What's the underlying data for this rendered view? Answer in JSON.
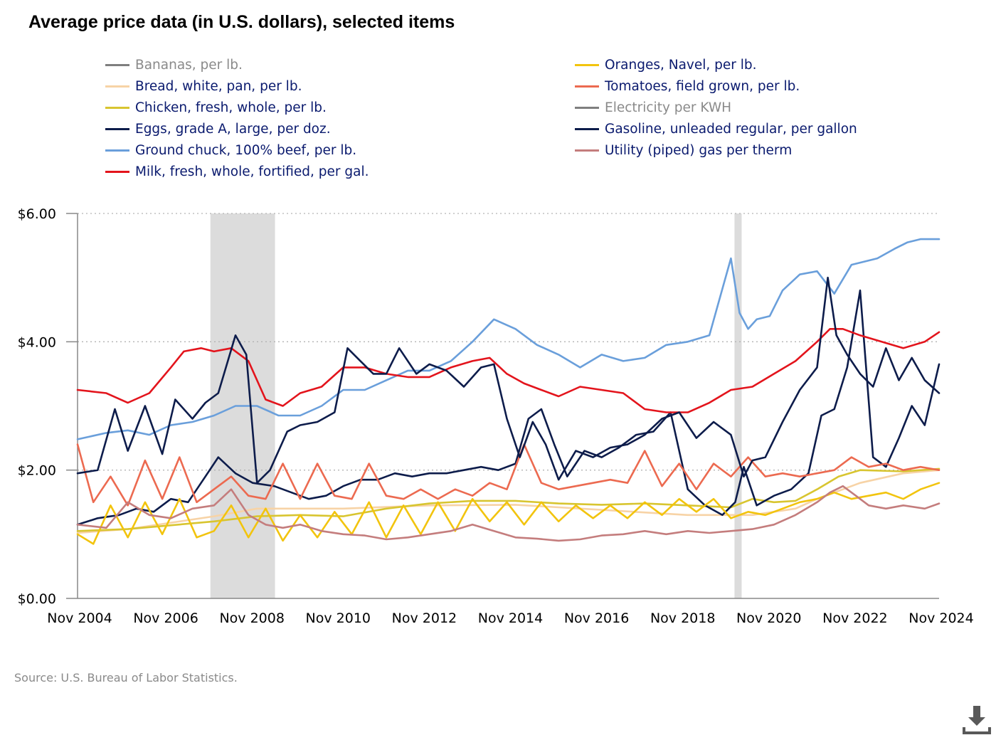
{
  "chart_data": {
    "type": "line",
    "title": "Average price data (in U.S. dollars), selected items",
    "source": "Source: U.S. Bureau of Labor Statistics.",
    "ylim": [
      0,
      6
    ],
    "yticks": [
      0,
      2,
      4,
      6
    ],
    "ytick_labels": [
      "$0.00",
      "$2.00",
      "$4.00",
      "$6.00"
    ],
    "xlim": [
      2004.833,
      2024.833
    ],
    "xticks": [
      2004.833,
      2006.833,
      2008.833,
      2010.833,
      2012.833,
      2014.833,
      2016.833,
      2018.833,
      2020.833,
      2022.833,
      2024.833
    ],
    "xtick_labels": [
      "Nov 2004",
      "Nov 2006",
      "Nov 2008",
      "Nov 2010",
      "Nov 2012",
      "Nov 2014",
      "Nov 2016",
      "Nov 2018",
      "Nov 2020",
      "Nov 2022",
      "Nov 2024"
    ],
    "grid": "horizontal dotted",
    "legend_placement": "top",
    "recessions": [
      [
        2007.917,
        2009.417
      ],
      [
        2020.083,
        2020.25
      ]
    ],
    "series": [
      {
        "name": "Bananas, per lb.",
        "color": "#7f7f7f",
        "hidden": true,
        "x": [],
        "y": []
      },
      {
        "name": "Bread, white, pan, per lb.",
        "color": "#f7d3a6",
        "x": [
          2004.833,
          2006,
          2008,
          2009,
          2011,
          2013,
          2015,
          2017,
          2019,
          2020.5,
          2021.5,
          2022,
          2023,
          2024,
          2024.833
        ],
        "y": [
          1.02,
          1.08,
          1.28,
          1.4,
          1.4,
          1.45,
          1.46,
          1.38,
          1.3,
          1.3,
          1.4,
          1.55,
          1.8,
          1.95,
          2.0
        ]
      },
      {
        "name": "Chicken, fresh, whole, per lb.",
        "color": "#d8c530",
        "x": [
          2004.833,
          2006,
          2008,
          2009,
          2010,
          2011,
          2012,
          2013,
          2014,
          2015,
          2016,
          2017,
          2018,
          2019,
          2020,
          2020.5,
          2021,
          2021.5,
          2022,
          2022.5,
          2023,
          2024,
          2024.833
        ],
        "y": [
          1.05,
          1.08,
          1.2,
          1.28,
          1.3,
          1.28,
          1.4,
          1.48,
          1.52,
          1.52,
          1.48,
          1.46,
          1.48,
          1.45,
          1.42,
          1.55,
          1.5,
          1.52,
          1.7,
          1.9,
          2.0,
          1.98,
          2.02
        ]
      },
      {
        "name": "Eggs, grade A, large, per doz.",
        "color": "#0d1c4b",
        "x": [
          2004.833,
          2005.3,
          2005.8,
          2006.2,
          2006.6,
          2007.0,
          2007.4,
          2007.8,
          2008.1,
          2008.5,
          2008.9,
          2009.4,
          2009.8,
          2010.2,
          2010.6,
          2011.0,
          2011.4,
          2011.8,
          2012.2,
          2012.6,
          2013.0,
          2013.4,
          2013.8,
          2014.2,
          2014.6,
          2015.0,
          2015.3,
          2015.6,
          2015.9,
          2016.2,
          2016.6,
          2017.0,
          2017.4,
          2017.8,
          2018.2,
          2018.6,
          2019.0,
          2019.4,
          2019.8,
          2020.1,
          2020.3,
          2020.6,
          2021.0,
          2021.4,
          2021.8,
          2022.1,
          2022.4,
          2022.7,
          2023.0,
          2023.3,
          2023.6,
          2023.9,
          2024.2,
          2024.5,
          2024.833
        ],
        "y": [
          1.15,
          1.25,
          1.3,
          1.4,
          1.35,
          1.55,
          1.5,
          1.9,
          2.2,
          1.95,
          1.8,
          1.75,
          1.65,
          1.55,
          1.6,
          1.75,
          1.85,
          1.85,
          1.95,
          1.9,
          1.95,
          1.95,
          2.0,
          2.05,
          2.0,
          2.1,
          2.8,
          2.95,
          2.4,
          1.9,
          2.3,
          2.2,
          2.35,
          2.55,
          2.6,
          2.9,
          1.7,
          1.45,
          1.3,
          1.5,
          2.05,
          1.45,
          1.6,
          1.7,
          1.95,
          2.85,
          2.95,
          3.6,
          4.8,
          2.2,
          2.05,
          2.5,
          3.0,
          2.7,
          3.65
        ]
      },
      {
        "name": "Ground chuck, 100% beef, per lb.",
        "color": "#6a9fdb",
        "x": [
          2004.833,
          2005.5,
          2006,
          2006.5,
          2007,
          2007.5,
          2008,
          2008.5,
          2009,
          2009.5,
          2010,
          2010.5,
          2011,
          2011.5,
          2012,
          2012.5,
          2013,
          2013.5,
          2014,
          2014.5,
          2015,
          2015.5,
          2016,
          2016.5,
          2017,
          2017.5,
          2018,
          2018.5,
          2019,
          2019.5,
          2020,
          2020.2,
          2020.4,
          2020.6,
          2020.9,
          2021.2,
          2021.6,
          2022,
          2022.4,
          2022.8,
          2023.1,
          2023.4,
          2023.8,
          2024.1,
          2024.4,
          2024.833
        ],
        "y": [
          2.48,
          2.58,
          2.62,
          2.55,
          2.7,
          2.75,
          2.85,
          3.0,
          3.0,
          2.85,
          2.85,
          3.0,
          3.25,
          3.25,
          3.4,
          3.55,
          3.55,
          3.7,
          4.0,
          4.35,
          4.2,
          3.95,
          3.8,
          3.6,
          3.8,
          3.7,
          3.75,
          3.95,
          4.0,
          4.1,
          5.3,
          4.45,
          4.2,
          4.35,
          4.4,
          4.8,
          5.05,
          5.1,
          4.75,
          5.2,
          5.25,
          5.3,
          5.45,
          5.55,
          5.6,
          5.6
        ]
      },
      {
        "name": "Milk, fresh, whole, fortified, per gal.",
        "color": "#e3141c",
        "x": [
          2004.833,
          2005.5,
          2006,
          2006.5,
          2007,
          2007.3,
          2007.7,
          2008,
          2008.4,
          2008.8,
          2009.2,
          2009.6,
          2010,
          2010.5,
          2011,
          2011.5,
          2012,
          2012.5,
          2013,
          2013.5,
          2014,
          2014.4,
          2014.8,
          2015.2,
          2015.6,
          2016,
          2016.5,
          2017,
          2017.5,
          2018,
          2018.5,
          2019,
          2019.5,
          2020,
          2020.5,
          2021,
          2021.5,
          2022,
          2022.3,
          2022.6,
          2023,
          2023.5,
          2024,
          2024.5,
          2024.833
        ],
        "y": [
          3.25,
          3.2,
          3.05,
          3.2,
          3.6,
          3.85,
          3.9,
          3.85,
          3.9,
          3.7,
          3.1,
          3.0,
          3.2,
          3.3,
          3.6,
          3.6,
          3.5,
          3.45,
          3.45,
          3.6,
          3.7,
          3.75,
          3.5,
          3.35,
          3.25,
          3.15,
          3.3,
          3.25,
          3.2,
          2.95,
          2.9,
          2.9,
          3.05,
          3.25,
          3.3,
          3.5,
          3.7,
          4.0,
          4.2,
          4.2,
          4.1,
          4.0,
          3.9,
          4.0,
          4.15
        ]
      },
      {
        "name": "Oranges, Navel, per lb.",
        "color": "#f2c40e",
        "x": [
          2004.833,
          2005.2,
          2005.6,
          2006.0,
          2006.4,
          2006.8,
          2007.2,
          2007.6,
          2008.0,
          2008.4,
          2008.8,
          2009.2,
          2009.6,
          2010.0,
          2010.4,
          2010.8,
          2011.2,
          2011.6,
          2012.0,
          2012.4,
          2012.8,
          2013.2,
          2013.6,
          2014.0,
          2014.4,
          2014.8,
          2015.2,
          2015.6,
          2016.0,
          2016.4,
          2016.8,
          2017.2,
          2017.6,
          2018.0,
          2018.4,
          2018.8,
          2019.2,
          2019.6,
          2020.0,
          2020.4,
          2020.8,
          2021.2,
          2021.6,
          2022.0,
          2022.4,
          2022.8,
          2023.2,
          2023.6,
          2024.0,
          2024.4,
          2024.833
        ],
        "y": [
          1.0,
          0.85,
          1.45,
          0.95,
          1.5,
          1.0,
          1.55,
          0.95,
          1.05,
          1.45,
          0.95,
          1.4,
          0.9,
          1.3,
          0.95,
          1.35,
          1.0,
          1.5,
          0.95,
          1.45,
          1.0,
          1.5,
          1.05,
          1.55,
          1.2,
          1.5,
          1.15,
          1.5,
          1.2,
          1.45,
          1.25,
          1.45,
          1.25,
          1.5,
          1.3,
          1.55,
          1.35,
          1.55,
          1.25,
          1.35,
          1.3,
          1.4,
          1.5,
          1.55,
          1.65,
          1.55,
          1.6,
          1.65,
          1.55,
          1.7,
          1.8
        ]
      },
      {
        "name": "Tomatoes, field grown, per lb.",
        "color": "#ec6a50",
        "x": [
          2004.833,
          2005.2,
          2005.6,
          2006.0,
          2006.4,
          2006.8,
          2007.2,
          2007.6,
          2008.0,
          2008.4,
          2008.8,
          2009.2,
          2009.6,
          2010.0,
          2010.4,
          2010.8,
          2011.2,
          2011.6,
          2012.0,
          2012.4,
          2012.8,
          2013.2,
          2013.6,
          2014.0,
          2014.4,
          2014.8,
          2015.2,
          2015.6,
          2016.0,
          2016.4,
          2016.8,
          2017.2,
          2017.6,
          2018.0,
          2018.4,
          2018.8,
          2019.2,
          2019.6,
          2020.0,
          2020.4,
          2020.8,
          2021.2,
          2021.6,
          2022.0,
          2022.4,
          2022.8,
          2023.2,
          2023.6,
          2024.0,
          2024.4,
          2024.833
        ],
        "y": [
          2.4,
          1.5,
          1.9,
          1.45,
          2.15,
          1.55,
          2.2,
          1.5,
          1.7,
          1.9,
          1.6,
          1.55,
          2.1,
          1.55,
          2.1,
          1.6,
          1.55,
          2.1,
          1.6,
          1.55,
          1.7,
          1.55,
          1.7,
          1.6,
          1.8,
          1.7,
          2.4,
          1.8,
          1.7,
          1.75,
          1.8,
          1.85,
          1.8,
          2.3,
          1.75,
          2.1,
          1.7,
          2.1,
          1.9,
          2.2,
          1.9,
          1.95,
          1.9,
          1.95,
          2.0,
          2.2,
          2.05,
          2.1,
          2.0,
          2.05,
          2.0
        ]
      },
      {
        "name": "Electricity per KWH",
        "color": "#7f7f7f",
        "hidden": true,
        "x": [],
        "y": []
      },
      {
        "name": "Gasoline, unleaded regular, per gallon",
        "color": "#0d1c4b",
        "x": [
          2004.833,
          2005.3,
          2005.7,
          2006.0,
          2006.4,
          2006.8,
          2007.1,
          2007.5,
          2007.8,
          2008.1,
          2008.5,
          2008.75,
          2009.0,
          2009.3,
          2009.7,
          2010.0,
          2010.4,
          2010.8,
          2011.1,
          2011.4,
          2011.7,
          2012.0,
          2012.3,
          2012.7,
          2013.0,
          2013.4,
          2013.8,
          2014.2,
          2014.5,
          2014.8,
          2015.1,
          2015.4,
          2015.7,
          2016.0,
          2016.4,
          2016.8,
          2017.2,
          2017.6,
          2018.0,
          2018.4,
          2018.8,
          2019.2,
          2019.6,
          2020.0,
          2020.3,
          2020.5,
          2020.8,
          2021.2,
          2021.6,
          2022.0,
          2022.25,
          2022.45,
          2022.7,
          2023.0,
          2023.3,
          2023.6,
          2023.9,
          2024.2,
          2024.5,
          2024.833
        ],
        "y": [
          1.95,
          2.0,
          2.95,
          2.3,
          3.0,
          2.25,
          3.1,
          2.8,
          3.05,
          3.2,
          4.1,
          3.8,
          1.8,
          2.0,
          2.6,
          2.7,
          2.75,
          2.9,
          3.9,
          3.7,
          3.5,
          3.5,
          3.9,
          3.5,
          3.65,
          3.55,
          3.3,
          3.6,
          3.65,
          2.8,
          2.2,
          2.75,
          2.4,
          1.85,
          2.3,
          2.2,
          2.35,
          2.4,
          2.55,
          2.8,
          2.9,
          2.5,
          2.75,
          2.55,
          1.9,
          2.15,
          2.2,
          2.75,
          3.25,
          3.6,
          5.0,
          4.1,
          3.8,
          3.5,
          3.3,
          3.9,
          3.4,
          3.75,
          3.4,
          3.2
        ]
      },
      {
        "name": "Utility (piped) gas per therm",
        "color": "#c47d7d",
        "x": [
          2004.833,
          2005.5,
          2006,
          2006.5,
          2007,
          2007.5,
          2008,
          2008.4,
          2008.8,
          2009.2,
          2009.6,
          2010,
          2010.5,
          2011,
          2011.5,
          2012,
          2012.5,
          2013,
          2013.5,
          2014,
          2014.5,
          2015,
          2015.5,
          2016,
          2016.5,
          2017,
          2017.5,
          2018,
          2018.5,
          2019,
          2019.5,
          2020,
          2020.5,
          2021,
          2021.5,
          2022,
          2022.3,
          2022.6,
          2022.9,
          2023.2,
          2023.6,
          2024,
          2024.5,
          2024.833
        ],
        "y": [
          1.15,
          1.1,
          1.5,
          1.3,
          1.25,
          1.4,
          1.45,
          1.7,
          1.3,
          1.15,
          1.1,
          1.15,
          1.05,
          1.0,
          0.98,
          0.92,
          0.95,
          1.0,
          1.05,
          1.15,
          1.05,
          0.95,
          0.93,
          0.9,
          0.92,
          0.98,
          1.0,
          1.05,
          1.0,
          1.05,
          1.02,
          1.05,
          1.08,
          1.15,
          1.3,
          1.5,
          1.65,
          1.75,
          1.6,
          1.45,
          1.4,
          1.45,
          1.4,
          1.48
        ]
      }
    ]
  }
}
